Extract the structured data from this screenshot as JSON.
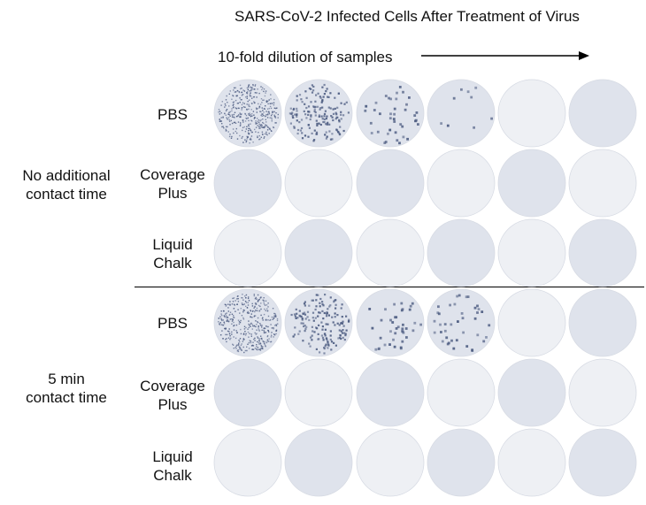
{
  "title": "SARS-CoV-2 Infected Cells After Treatment of Virus",
  "dilution_label": "10-fold dilution of samples",
  "groups": [
    {
      "label_lines": [
        "No additional",
        "contact time"
      ],
      "rows": [
        {
          "label_lines": [
            "PBS"
          ],
          "plaques": [
            "dense",
            "heavy",
            "medium",
            "light",
            "clear",
            "clear"
          ]
        },
        {
          "label_lines": [
            "Coverage",
            "Plus"
          ],
          "plaques": [
            "clear",
            "clear",
            "clear",
            "clear",
            "clear",
            "clear"
          ]
        },
        {
          "label_lines": [
            "Liquid",
            "Chalk"
          ],
          "plaques": [
            "clear",
            "clear",
            "clear",
            "clear",
            "clear",
            "clear"
          ]
        }
      ]
    },
    {
      "label_lines": [
        "5 min",
        "contact time"
      ],
      "rows": [
        {
          "label_lines": [
            "PBS"
          ],
          "plaques": [
            "dense",
            "heavy",
            "medium",
            "medium",
            "clear",
            "clear"
          ]
        },
        {
          "label_lines": [
            "Coverage",
            "Plus"
          ],
          "plaques": [
            "clear",
            "clear",
            "clear",
            "clear",
            "clear",
            "clear"
          ]
        },
        {
          "label_lines": [
            "Liquid",
            "Chalk"
          ],
          "plaques": [
            "clear",
            "clear",
            "clear",
            "clear",
            "clear",
            "clear"
          ]
        }
      ]
    }
  ],
  "colors": {
    "well_fill": "#dfe3ec",
    "well_light": "#eef0f4",
    "plaque": "#4e5d82",
    "text": "#111111"
  }
}
